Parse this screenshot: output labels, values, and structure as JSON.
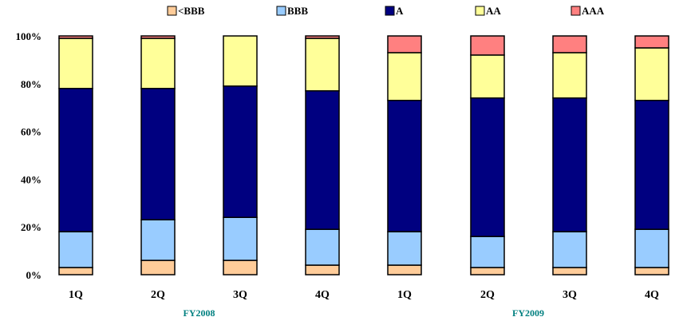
{
  "chart_data": {
    "type": "bar",
    "stacked": true,
    "percent": true,
    "categories": [
      "1Q",
      "2Q",
      "3Q",
      "4Q",
      "1Q",
      "2Q",
      "3Q",
      "4Q"
    ],
    "groups": [
      {
        "label": "FY2008",
        "start": 0,
        "end": 3
      },
      {
        "label": "FY2009",
        "start": 4,
        "end": 7
      }
    ],
    "series": [
      {
        "name": "<BBB",
        "color": "#FFCC99",
        "values": [
          3,
          6,
          6,
          4,
          4,
          3,
          3,
          3
        ]
      },
      {
        "name": "BBB",
        "color": "#99CCFF",
        "values": [
          15,
          17,
          18,
          15,
          14,
          13,
          15,
          16
        ]
      },
      {
        "name": "A",
        "color": "#000080",
        "values": [
          60,
          55,
          55,
          58,
          55,
          58,
          56,
          54
        ]
      },
      {
        "name": "AA",
        "color": "#FFFF99",
        "values": [
          21,
          21,
          21,
          22,
          20,
          18,
          19,
          22
        ]
      },
      {
        "name": "AAA",
        "color": "#FF8080",
        "values": [
          1,
          1,
          0,
          1,
          7,
          8,
          7,
          5
        ]
      }
    ],
    "ylim": [
      0,
      100
    ],
    "yticks": [
      "0%",
      "20%",
      "40%",
      "60%",
      "80%",
      "100%"
    ],
    "legend_position": "top",
    "grid": false,
    "group_label_color": "#008080"
  }
}
